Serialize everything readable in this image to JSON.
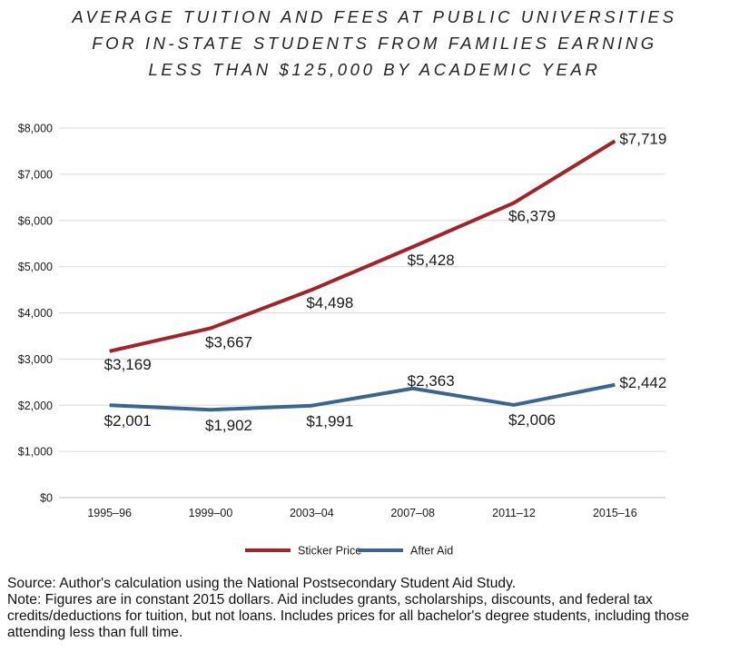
{
  "title_lines": [
    "AVERAGE TUITION AND FEES AT PUBLIC UNIVERSITIES",
    "FOR IN-STATE STUDENTS FROM FAMILIES EARNING",
    "LESS THAN $125,000 BY ACADEMIC YEAR"
  ],
  "chart_data": {
    "type": "line",
    "title": "AVERAGE TUITION AND FEES AT PUBLIC UNIVERSITIES FOR IN-STATE STUDENTS FROM FAMILIES EARNING LESS THAN $125,000 BY ACADEMIC YEAR",
    "categories": [
      "1995–96",
      "1999–00",
      "2003–04",
      "2007–08",
      "2011–12",
      "2015–16"
    ],
    "series": [
      {
        "name": "Sticker Price",
        "color": "#a52228",
        "values": [
          3169,
          3667,
          4498,
          5428,
          6379,
          7719
        ],
        "labels": [
          "$3,169",
          "$3,667",
          "$4,498",
          "$5,428",
          "$6,379",
          "$7,719"
        ]
      },
      {
        "name": "After Aid",
        "color": "#3a6593",
        "values": [
          2001,
          1902,
          1991,
          2363,
          2006,
          2442
        ],
        "labels": [
          "$2,001",
          "$1,902",
          "$1,991",
          "$2,363",
          "$2,006",
          "$2,442"
        ]
      }
    ],
    "ylim": [
      0,
      8000
    ],
    "yticks": [
      0,
      1000,
      2000,
      3000,
      4000,
      5000,
      6000,
      7000,
      8000
    ],
    "ytick_labels": [
      "$0",
      "$1,000",
      "$2,000",
      "$3,000",
      "$4,000",
      "$5,000",
      "$6,000",
      "$7,000",
      "$8,000"
    ],
    "xlabel": "",
    "ylabel": "",
    "grid": true,
    "legend": "bottom-center"
  },
  "footnote": {
    "source": "Source: Author's calculation using the National Postsecondary Student Aid Study.",
    "note": "Note: Figures are in constant 2015 dollars. Aid includes grants, scholarships, discounts, and federal tax credits/deductions for tuition, but not loans. Includes prices for all bachelor's degree students, including those attending less than full time."
  }
}
